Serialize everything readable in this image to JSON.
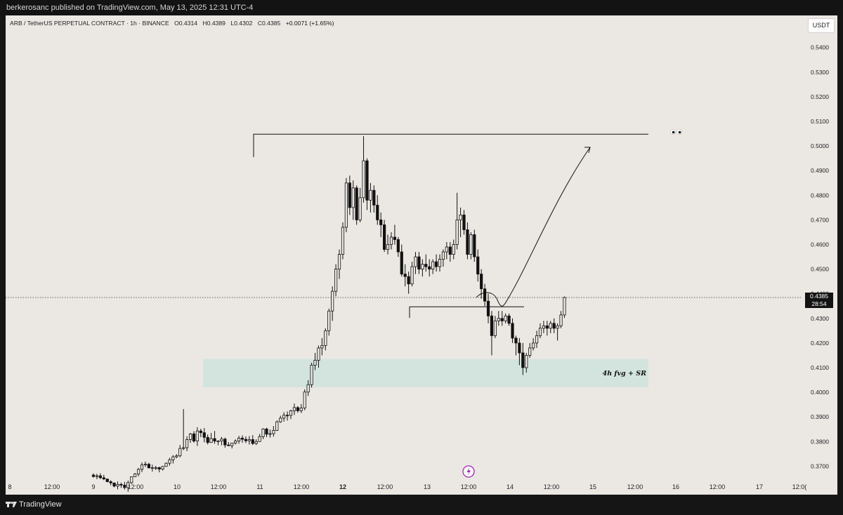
{
  "header": {
    "published_text": "berkerosanc published on TradingView.com, May 13, 2025 12:31 UTC-4"
  },
  "legend": {
    "symbol": "ARB / TetherUS PERPETUAL CONTRACT · 1h · BINANCE",
    "open": "O0.4314",
    "high": "H0.4389",
    "low": "L0.4302",
    "close": "C0.4385",
    "change": "+0.0071 (+1.65%)"
  },
  "currency_button": "USDT",
  "price_axis": [
    "0.5400",
    "0.5300",
    "0.5200",
    "0.5100",
    "0.5000",
    "0.4900",
    "0.4800",
    "0.4700",
    "0.4600",
    "0.4500",
    "0.4400",
    "0.4300",
    "0.4200",
    "0.4100",
    "0.4000",
    "0.3900",
    "0.3800",
    "0.3700"
  ],
  "time_axis": [
    "8",
    "12:00",
    "9",
    "12:00",
    "10",
    "12:00",
    "11",
    "12:00",
    "12",
    "12:00",
    "13",
    "12:00",
    "14",
    "12:00",
    "15",
    "12:00",
    "16",
    "12:00",
    "17",
    "12:0("
  ],
  "last_price": {
    "price": "0.4385",
    "countdown": "28:54"
  },
  "annotation": {
    "zone_label": "4h fvg + SR",
    "zone_top": 0.4135,
    "zone_bottom": 0.402,
    "resistance": 0.5048,
    "breakout_level": 0.4347
  },
  "footer": {
    "brand": "TradingView"
  },
  "colors": {
    "background": "#ebe7e3",
    "zone": "#d3e4df",
    "candle": "#111111"
  },
  "chart_data": {
    "type": "candlestick",
    "symbol": "ARB / TetherUS PERPETUAL CONTRACT",
    "interval": "1h",
    "exchange": "BINANCE",
    "ylim": [
      0.365,
      0.547
    ],
    "x_start": "2025-05-08 08:00",
    "candles": [
      [
        0.3664,
        0.3671,
        0.3653,
        0.3658
      ],
      [
        0.3658,
        0.3669,
        0.3647,
        0.3661
      ],
      [
        0.3661,
        0.3671,
        0.3648,
        0.3653
      ],
      [
        0.3653,
        0.3665,
        0.3643,
        0.3648
      ],
      [
        0.3648,
        0.3649,
        0.3635,
        0.3637
      ],
      [
        0.3637,
        0.3643,
        0.3622,
        0.3632
      ],
      [
        0.3632,
        0.3633,
        0.3614,
        0.3619
      ],
      [
        0.3619,
        0.3638,
        0.3606,
        0.3626
      ],
      [
        0.3626,
        0.3633,
        0.3612,
        0.3623
      ],
      [
        0.3623,
        0.3636,
        0.3605,
        0.3613
      ],
      [
        0.3613,
        0.3641,
        0.3596,
        0.3633
      ],
      [
        0.3633,
        0.3658,
        0.3628,
        0.3657
      ],
      [
        0.3657,
        0.3672,
        0.3656,
        0.3668
      ],
      [
        0.3668,
        0.3693,
        0.3659,
        0.3687
      ],
      [
        0.3687,
        0.3715,
        0.3676,
        0.3705
      ],
      [
        0.3705,
        0.3719,
        0.3697,
        0.3708
      ],
      [
        0.3708,
        0.3714,
        0.3691,
        0.3693
      ],
      [
        0.3693,
        0.3706,
        0.3678,
        0.3694
      ],
      [
        0.3694,
        0.3701,
        0.3684,
        0.3694
      ],
      [
        0.3694,
        0.3698,
        0.3675,
        0.3688
      ],
      [
        0.3688,
        0.3701,
        0.3682,
        0.3699
      ],
      [
        0.3699,
        0.3715,
        0.3698,
        0.3712
      ],
      [
        0.3712,
        0.3734,
        0.3702,
        0.3726
      ],
      [
        0.3726,
        0.3745,
        0.3711,
        0.3738
      ],
      [
        0.3738,
        0.3749,
        0.3732,
        0.3742
      ],
      [
        0.3742,
        0.3786,
        0.3736,
        0.3772
      ],
      [
        0.3772,
        0.3932,
        0.3765,
        0.3775
      ],
      [
        0.3775,
        0.3821,
        0.3761,
        0.3808
      ],
      [
        0.3808,
        0.3835,
        0.3795,
        0.3831
      ],
      [
        0.3831,
        0.3842,
        0.3795,
        0.3802
      ],
      [
        0.3802,
        0.3858,
        0.3782,
        0.3843
      ],
      [
        0.3843,
        0.3852,
        0.3818,
        0.3836
      ],
      [
        0.3836,
        0.3855,
        0.3797,
        0.3817
      ],
      [
        0.3817,
        0.3829,
        0.3788,
        0.3796
      ],
      [
        0.3796,
        0.3835,
        0.3795,
        0.3812
      ],
      [
        0.3812,
        0.3843,
        0.3791,
        0.3802
      ],
      [
        0.3802,
        0.3805,
        0.3785,
        0.3802
      ],
      [
        0.3802,
        0.3819,
        0.3785,
        0.381
      ],
      [
        0.381,
        0.3816,
        0.3775,
        0.3786
      ],
      [
        0.3786,
        0.3798,
        0.3782,
        0.3783
      ],
      [
        0.3783,
        0.3794,
        0.3772,
        0.3794
      ],
      [
        0.3794,
        0.3809,
        0.3788,
        0.3802
      ],
      [
        0.3802,
        0.3823,
        0.3791,
        0.3814
      ],
      [
        0.3814,
        0.3825,
        0.3795,
        0.3809
      ],
      [
        0.3809,
        0.3821,
        0.3794,
        0.3803
      ],
      [
        0.3803,
        0.3822,
        0.3788,
        0.3808
      ],
      [
        0.3808,
        0.3826,
        0.3786,
        0.3792
      ],
      [
        0.3792,
        0.3809,
        0.3786,
        0.38
      ],
      [
        0.38,
        0.3831,
        0.3799,
        0.382
      ],
      [
        0.382,
        0.3854,
        0.381,
        0.3851
      ],
      [
        0.3851,
        0.3856,
        0.3818,
        0.383
      ],
      [
        0.383,
        0.3849,
        0.3816,
        0.3832
      ],
      [
        0.3832,
        0.3863,
        0.382,
        0.3845
      ],
      [
        0.3845,
        0.3886,
        0.3843,
        0.388
      ],
      [
        0.388,
        0.3905,
        0.3876,
        0.3895
      ],
      [
        0.3895,
        0.3919,
        0.3881,
        0.3907
      ],
      [
        0.3907,
        0.3922,
        0.3885,
        0.3906
      ],
      [
        0.3906,
        0.3929,
        0.3891,
        0.3925
      ],
      [
        0.3925,
        0.3954,
        0.3908,
        0.3938
      ],
      [
        0.3938,
        0.3944,
        0.3917,
        0.3925
      ],
      [
        0.3925,
        0.3952,
        0.3916,
        0.3936
      ],
      [
        0.3936,
        0.4012,
        0.3927,
        0.4001
      ],
      [
        0.4001,
        0.4049,
        0.3985,
        0.4031
      ],
      [
        0.4031,
        0.412,
        0.4019,
        0.411
      ],
      [
        0.411,
        0.416,
        0.409,
        0.413
      ],
      [
        0.413,
        0.419,
        0.41,
        0.418
      ],
      [
        0.418,
        0.422,
        0.415,
        0.419
      ],
      [
        0.419,
        0.426,
        0.417,
        0.425
      ],
      [
        0.425,
        0.434,
        0.423,
        0.433
      ],
      [
        0.433,
        0.443,
        0.429,
        0.441
      ],
      [
        0.441,
        0.452,
        0.439,
        0.45
      ],
      [
        0.45,
        0.458,
        0.446,
        0.456
      ],
      [
        0.456,
        0.469,
        0.454,
        0.467
      ],
      [
        0.467,
        0.487,
        0.465,
        0.485
      ],
      [
        0.485,
        0.488,
        0.472,
        0.475
      ],
      [
        0.475,
        0.486,
        0.47,
        0.483
      ],
      [
        0.483,
        0.484,
        0.468,
        0.47
      ],
      [
        0.47,
        0.483,
        0.469,
        0.479
      ],
      [
        0.479,
        0.504,
        0.477,
        0.494
      ],
      [
        0.494,
        0.495,
        0.474,
        0.478
      ],
      [
        0.478,
        0.485,
        0.473,
        0.482
      ],
      [
        0.482,
        0.484,
        0.473,
        0.476
      ],
      [
        0.476,
        0.48,
        0.468,
        0.47
      ],
      [
        0.47,
        0.473,
        0.463,
        0.468
      ],
      [
        0.468,
        0.47,
        0.457,
        0.458
      ],
      [
        0.458,
        0.464,
        0.456,
        0.46
      ],
      [
        0.46,
        0.465,
        0.458,
        0.463
      ],
      [
        0.463,
        0.468,
        0.46,
        0.462
      ],
      [
        0.462,
        0.463,
        0.455,
        0.457
      ],
      [
        0.457,
        0.46,
        0.447,
        0.448
      ],
      [
        0.448,
        0.452,
        0.443,
        0.447
      ],
      [
        0.447,
        0.449,
        0.44,
        0.444
      ],
      [
        0.444,
        0.453,
        0.443,
        0.451
      ],
      [
        0.451,
        0.457,
        0.448,
        0.455
      ],
      [
        0.455,
        0.457,
        0.448,
        0.45
      ],
      [
        0.45,
        0.454,
        0.447,
        0.452
      ],
      [
        0.452,
        0.456,
        0.449,
        0.451
      ],
      [
        0.451,
        0.454,
        0.447,
        0.45
      ],
      [
        0.45,
        0.454,
        0.448,
        0.453
      ],
      [
        0.453,
        0.456,
        0.449,
        0.451
      ],
      [
        0.451,
        0.456,
        0.449,
        0.454
      ],
      [
        0.454,
        0.458,
        0.451,
        0.457
      ],
      [
        0.457,
        0.461,
        0.454,
        0.459
      ],
      [
        0.459,
        0.461,
        0.453,
        0.456
      ],
      [
        0.456,
        0.462,
        0.454,
        0.46
      ],
      [
        0.46,
        0.481,
        0.458,
        0.47
      ],
      [
        0.47,
        0.475,
        0.463,
        0.472
      ],
      [
        0.472,
        0.474,
        0.464,
        0.466
      ],
      [
        0.466,
        0.469,
        0.454,
        0.456
      ],
      [
        0.456,
        0.465,
        0.454,
        0.464
      ],
      [
        0.464,
        0.466,
        0.453,
        0.455
      ],
      [
        0.455,
        0.458,
        0.445,
        0.448
      ],
      [
        0.448,
        0.45,
        0.438,
        0.442
      ],
      [
        0.442,
        0.444,
        0.435,
        0.437
      ],
      [
        0.437,
        0.44,
        0.428,
        0.431
      ],
      [
        0.431,
        0.433,
        0.415,
        0.423
      ],
      [
        0.423,
        0.431,
        0.422,
        0.429
      ],
      [
        0.429,
        0.433,
        0.427,
        0.43
      ],
      [
        0.43,
        0.433,
        0.427,
        0.429
      ],
      [
        0.429,
        0.432,
        0.428,
        0.431
      ],
      [
        0.431,
        0.432,
        0.427,
        0.428
      ],
      [
        0.428,
        0.43,
        0.42,
        0.422
      ],
      [
        0.422,
        0.423,
        0.415,
        0.42
      ],
      [
        0.42,
        0.422,
        0.411,
        0.416
      ],
      [
        0.416,
        0.42,
        0.407,
        0.41
      ],
      [
        0.41,
        0.416,
        0.408,
        0.415
      ],
      [
        0.415,
        0.42,
        0.414,
        0.418
      ],
      [
        0.418,
        0.422,
        0.417,
        0.42
      ],
      [
        0.42,
        0.425,
        0.418,
        0.423
      ],
      [
        0.423,
        0.428,
        0.422,
        0.426
      ],
      [
        0.426,
        0.429,
        0.424,
        0.427
      ],
      [
        0.427,
        0.429,
        0.423,
        0.426
      ],
      [
        0.426,
        0.429,
        0.424,
        0.428
      ],
      [
        0.428,
        0.43,
        0.424,
        0.426
      ],
      [
        0.426,
        0.428,
        0.421,
        0.427
      ],
      [
        0.427,
        0.433,
        0.426,
        0.4314
      ],
      [
        0.4314,
        0.4389,
        0.4302,
        0.4385
      ]
    ]
  }
}
